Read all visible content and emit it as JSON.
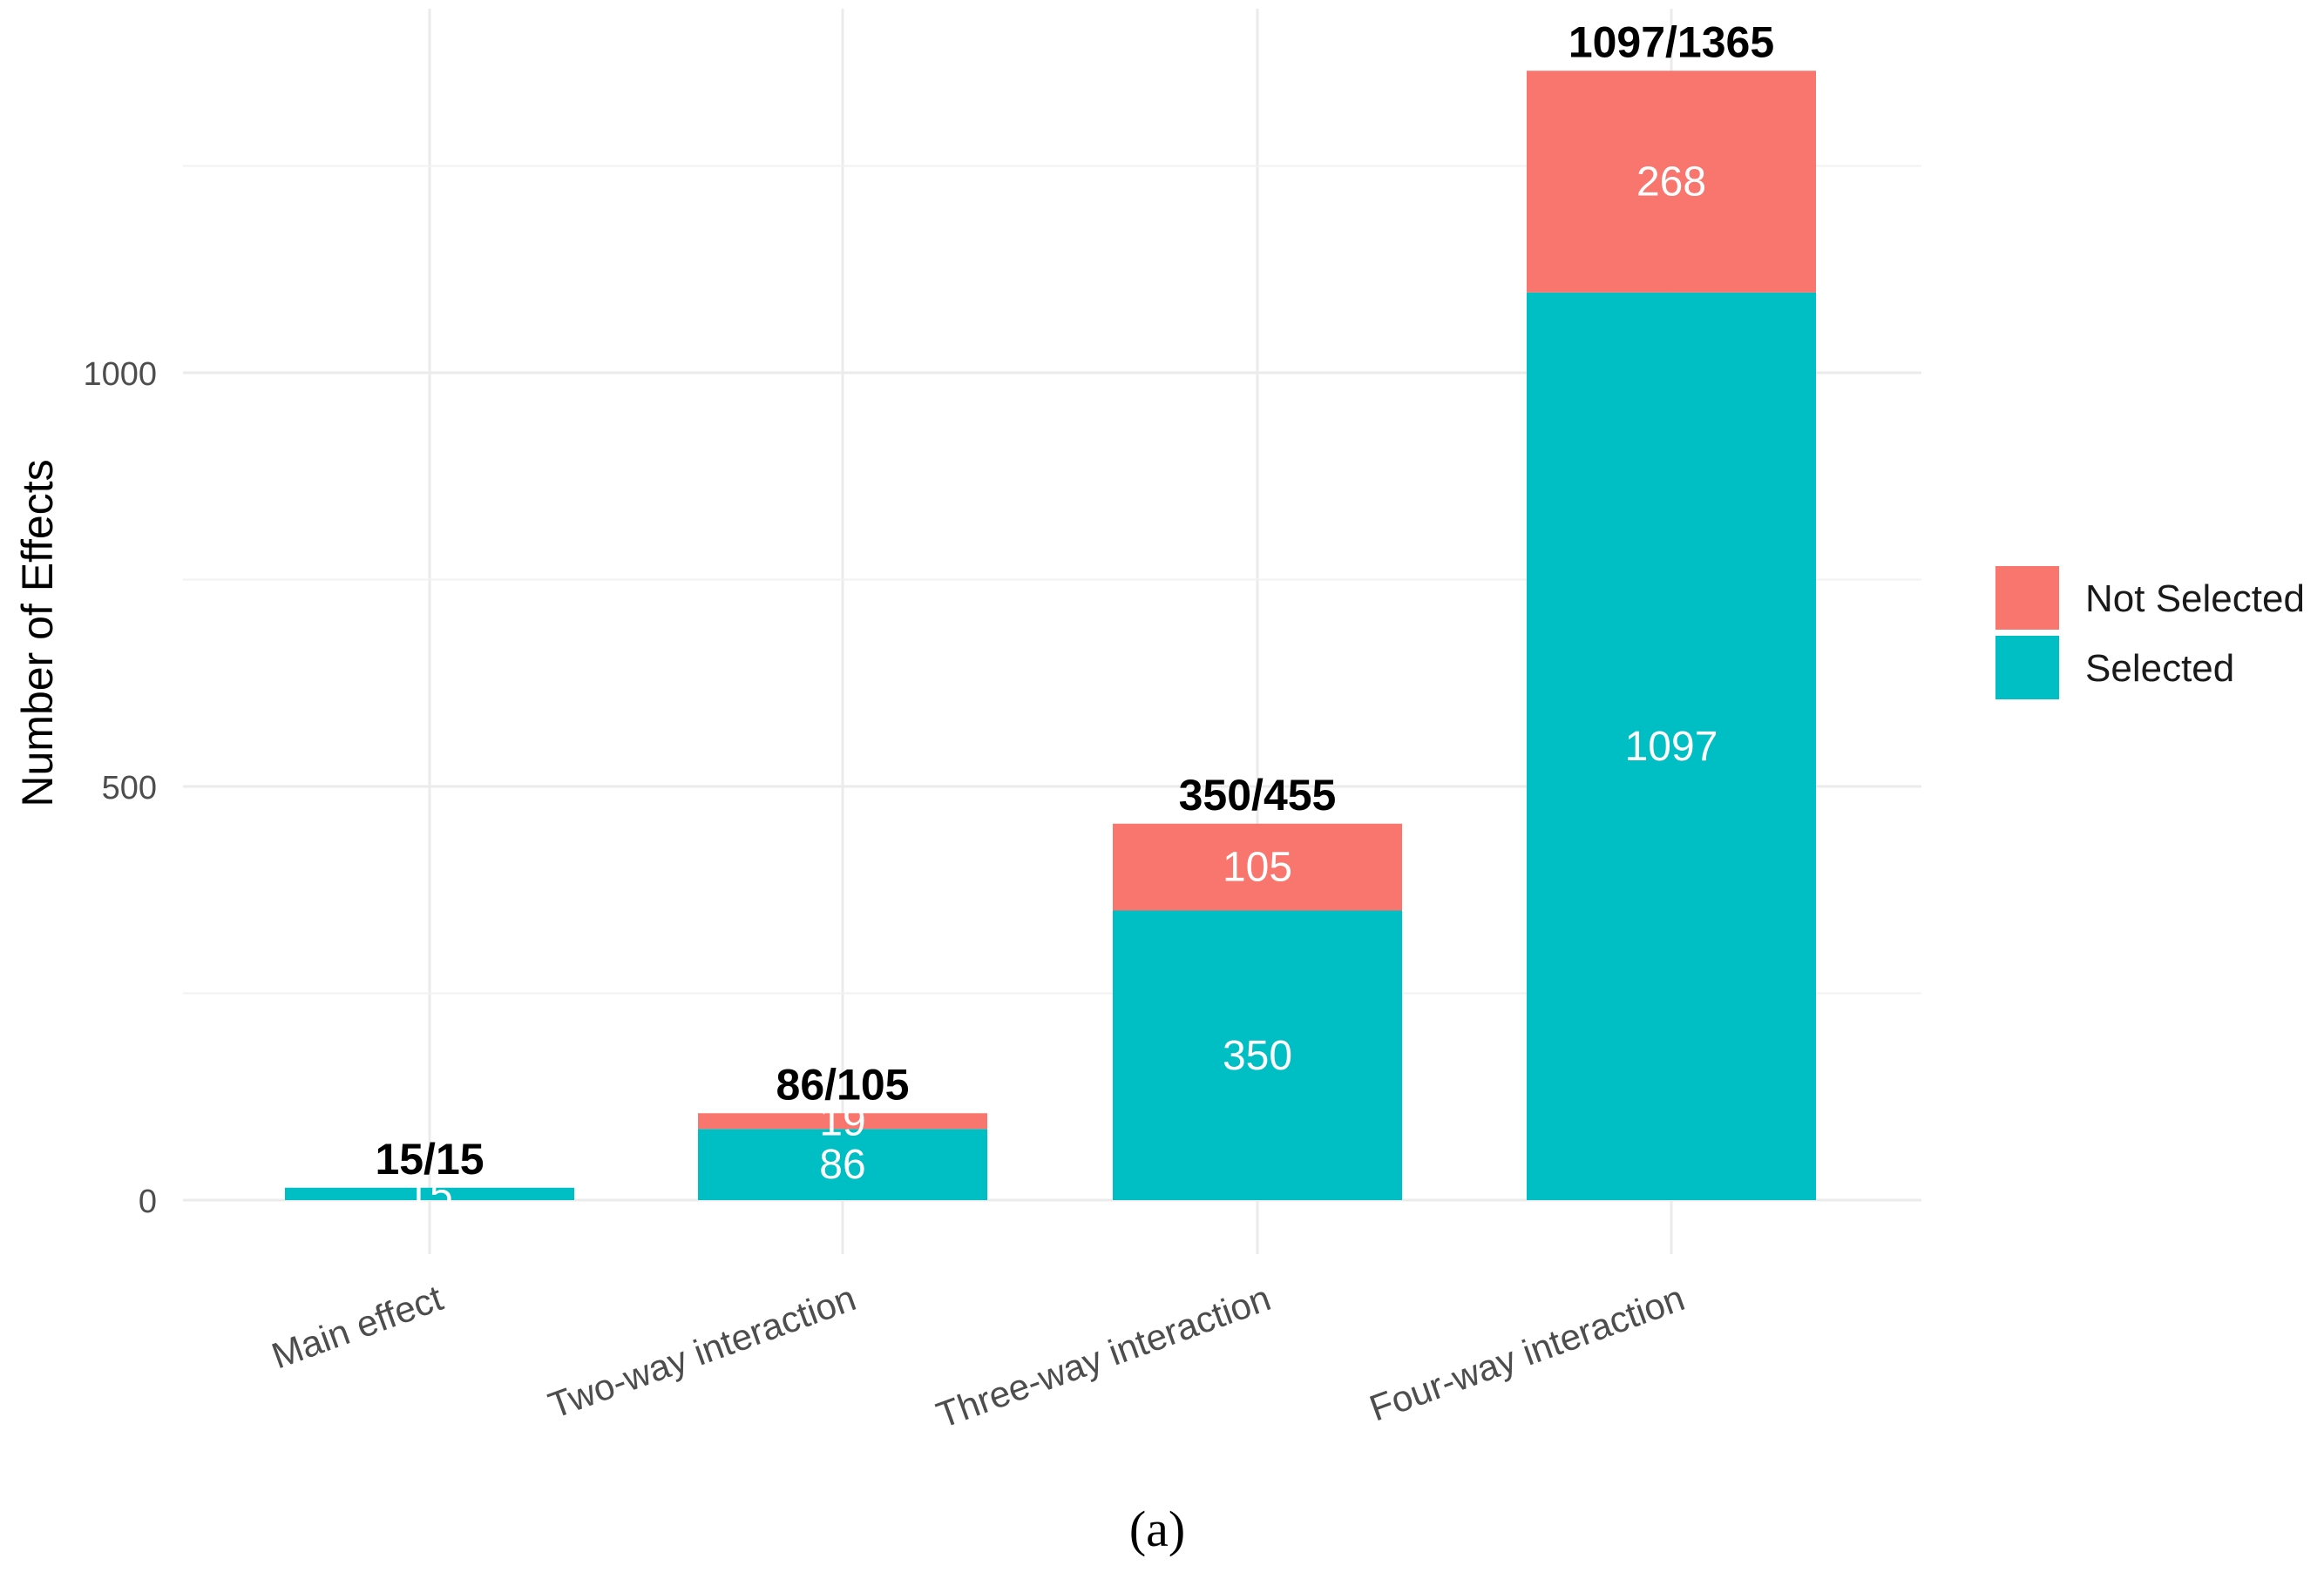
{
  "chart_data": {
    "type": "bar",
    "stacked": true,
    "categories": [
      "Main effect",
      "Two-way interaction",
      "Three-way interaction",
      "Four-way interaction"
    ],
    "series": [
      {
        "name": "Selected",
        "values": [
          15,
          86,
          350,
          1097
        ],
        "labels": [
          "15",
          "86",
          "350",
          "1097"
        ],
        "color": "#00BFC4"
      },
      {
        "name": "Not Selected",
        "values": [
          0,
          19,
          105,
          268
        ],
        "labels": [
          "",
          "19",
          "105",
          "268"
        ],
        "color": "#F8766D"
      }
    ],
    "totals": [
      "15/15",
      "86/105",
      "350/455",
      "1097/1365"
    ],
    "ylabel": "Number of Effects",
    "xlabel": "",
    "ylim": [
      -60,
      1430
    ],
    "yticks": [
      0,
      500,
      1000
    ],
    "ytick_labels": [
      "0",
      "500",
      "1000"
    ],
    "minor_yticks": [
      250,
      750,
      1250
    ],
    "grid": true,
    "legend": {
      "placement": "right",
      "entries": [
        {
          "label": "Not Selected",
          "color": "#F8766D"
        },
        {
          "label": "Selected",
          "color": "#00BFC4"
        }
      ]
    },
    "caption": "(a)"
  }
}
